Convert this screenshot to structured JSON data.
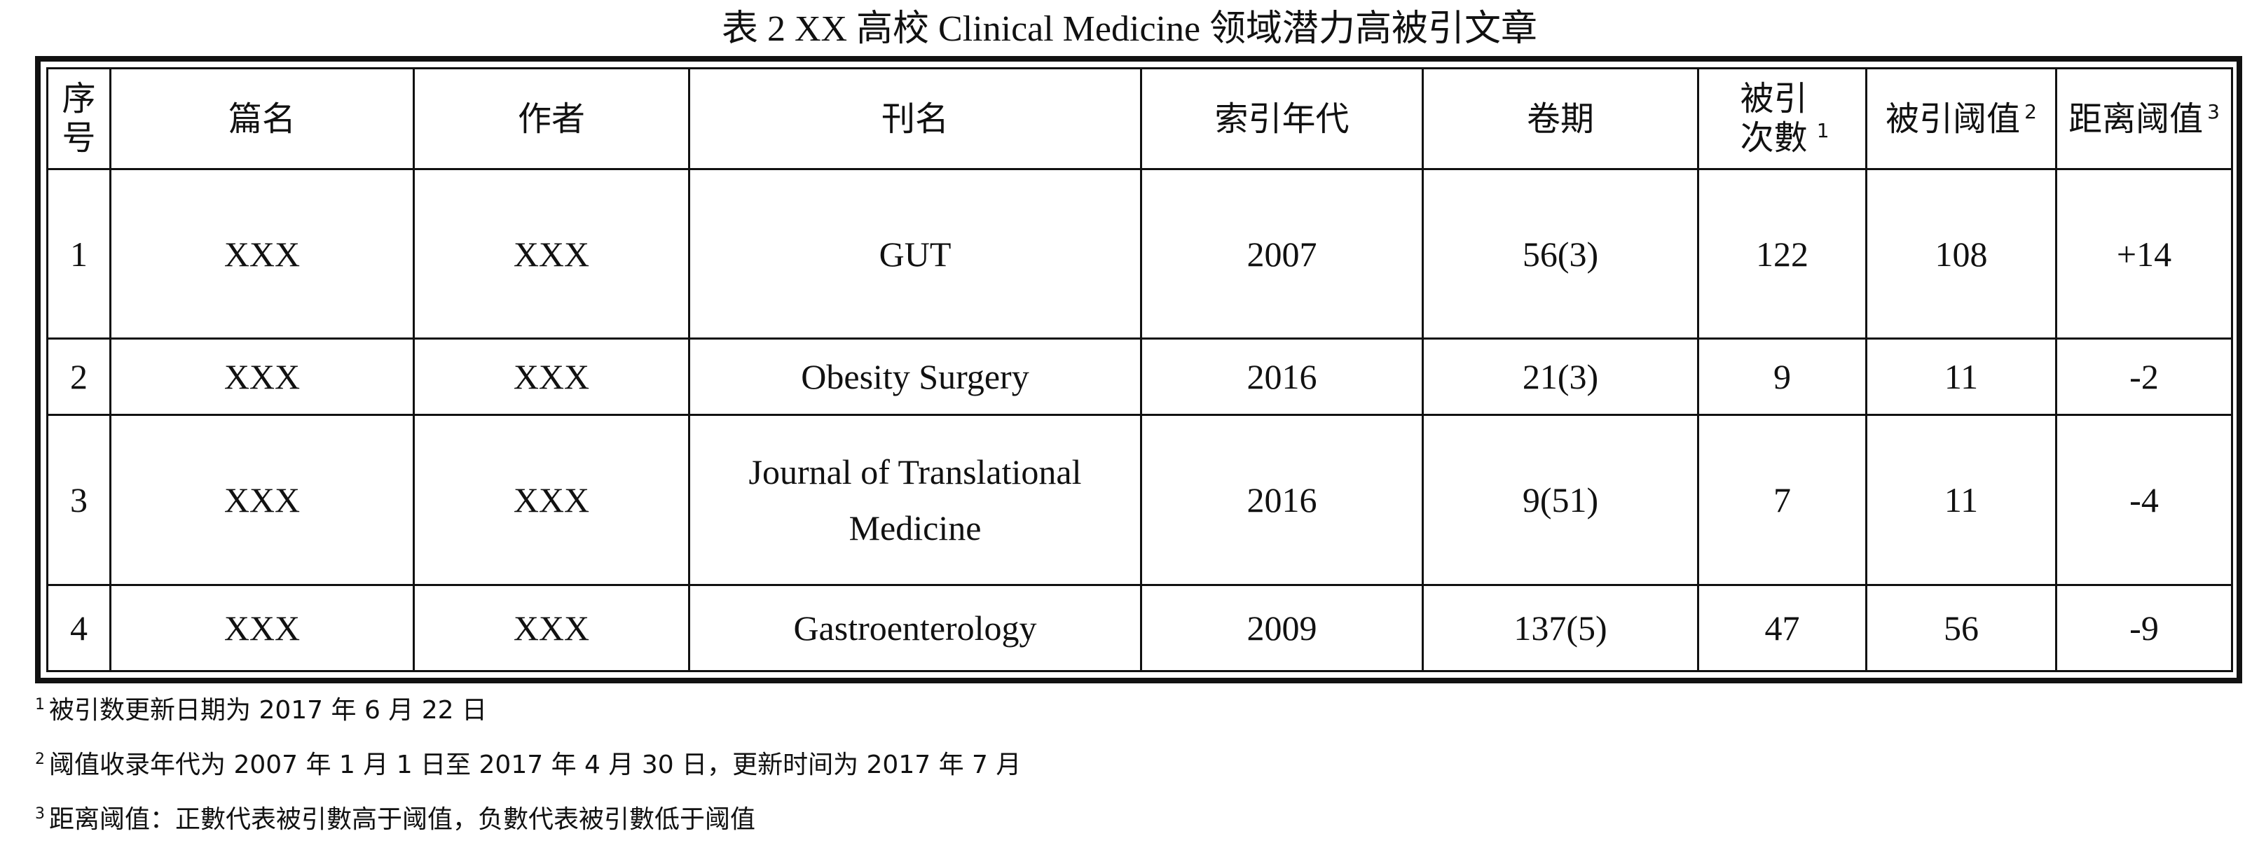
{
  "caption": "表 2 XX 高校 Clinical Medicine 领域潜力高被引文章",
  "table": {
    "headers": [
      {
        "text": "序号",
        "sup": ""
      },
      {
        "text": "篇名",
        "sup": ""
      },
      {
        "text": "作者",
        "sup": ""
      },
      {
        "text": "刊名",
        "sup": ""
      },
      {
        "text": "索引年代",
        "sup": ""
      },
      {
        "text": "卷期",
        "sup": ""
      },
      {
        "text": "被引次數",
        "sup": "1"
      },
      {
        "text": "被引阈值",
        "sup": "2"
      },
      {
        "text": "距离阈值",
        "sup": "3"
      }
    ],
    "rows": [
      [
        "1",
        "XXX",
        "XXX",
        "GUT",
        "2007",
        "56(3)",
        "122",
        "108",
        "+14"
      ],
      [
        "2",
        "XXX",
        "XXX",
        "Obesity Surgery",
        "2016",
        "21(3)",
        "9",
        "11",
        "-2"
      ],
      [
        "3",
        "XXX",
        "XXX",
        "Journal of Translational Medicine",
        "2016",
        "9(51)",
        "7",
        "11",
        "-4"
      ],
      [
        "4",
        "XXX",
        "XXX",
        "Gastroenterology",
        "2009",
        "137(5)",
        "47",
        "56",
        "-9"
      ]
    ]
  },
  "footnotes": [
    {
      "sup": "1",
      "text": "被引数更新日期为 2017 年 6 月 22 日"
    },
    {
      "sup": "2",
      "text": "阈值收录年代为 2007 年 1 月 1 日至 2017 年 4 月 30 日，更新时间为 2017 年 7 月"
    },
    {
      "sup": "3",
      "text": "距离阈值：正數代表被引數高于阈值，负數代表被引數低于阈值"
    }
  ]
}
